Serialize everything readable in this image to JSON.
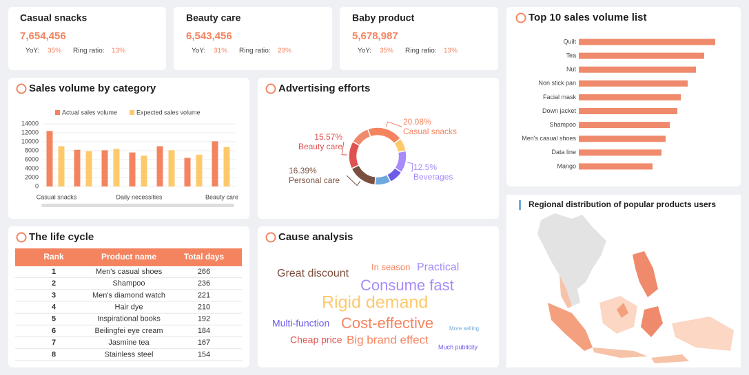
{
  "cards": [
    {
      "name": "Casual snacks",
      "value": "7,654,456",
      "yoy_label": "YoY:",
      "yoy": "35%",
      "ring_label": "Ring ratio:",
      "ring": "13%"
    },
    {
      "name": "Beauty care",
      "value": "6,543,456",
      "yoy_label": "YoY:",
      "yoy": "31%",
      "ring_label": "Ring ratio:",
      "ring": "23%"
    },
    {
      "name": "Baby product",
      "value": "5,678,987",
      "yoy_label": "YoY:",
      "yoy": "35%",
      "ring_label": "Ring ratio:",
      "ring": "13%"
    }
  ],
  "chart_data": [
    {
      "type": "bar",
      "title": "Sales volume by category",
      "categories": [
        "Casual snacks",
        null,
        null,
        "Daily necessities",
        null,
        null,
        "Beauty care"
      ],
      "series": [
        {
          "name": "Actual sales volume",
          "color": "#f4845f",
          "values": [
            12400,
            8200,
            8100,
            7600,
            9000,
            6400,
            10100
          ]
        },
        {
          "name": "Expected sales volume",
          "color": "#fdc96b",
          "values": [
            9000,
            7900,
            8400,
            6900,
            8100,
            7100,
            8800
          ]
        }
      ],
      "ylim": [
        0,
        14000
      ],
      "yticks": [
        0,
        2000,
        4000,
        6000,
        8000,
        10000,
        12000,
        14000
      ],
      "grid": true,
      "legend": "top"
    },
    {
      "type": "pie",
      "title": "Advertising efforts",
      "categories": [
        "Casual snacks",
        null,
        "Beverages",
        null,
        null,
        "Personal care",
        "Beauty care",
        null
      ],
      "values": [
        20.08,
        7.5,
        12.5,
        8,
        9,
        16.39,
        15.57,
        10.96
      ],
      "value_labels": [
        "20.08%",
        null,
        "12.5%",
        null,
        null,
        "16.39%",
        "15.57%",
        null
      ],
      "colors": [
        "#f4845f",
        "#fdc96b",
        "#a78bfa",
        "#6c5ce7",
        "#6fa8dc",
        "#7b4f3f",
        "#e05252",
        "#f08a6c"
      ],
      "donut": true
    },
    {
      "type": "hbar",
      "title": "Top 10 sales volume list",
      "categories": [
        "Quilt",
        "Tea",
        "Nut",
        "Non stick pan",
        "Facial mask",
        "Down jacket",
        "Shampoo",
        "Men's casual shoes",
        "Data line",
        "Mango"
      ],
      "values": [
        198,
        182,
        170,
        158,
        148,
        143,
        132,
        126,
        120,
        107
      ],
      "xlim": [
        0,
        200
      ],
      "color": "#f08a6c"
    }
  ],
  "table": {
    "title": "The life cycle",
    "header": [
      "Rank",
      "Product name",
      "Total days"
    ],
    "rows": [
      [
        1,
        "Men's casual shoes",
        266
      ],
      [
        2,
        "Shampoo",
        236
      ],
      [
        3,
        "Men's diamond watch",
        221
      ],
      [
        4,
        "Hair dye",
        210
      ],
      [
        5,
        "Inspirational books",
        192
      ],
      [
        6,
        "Beilingfei eye cream",
        184
      ],
      [
        7,
        "Jasmine tea",
        167
      ],
      [
        8,
        "Stainless steel",
        154
      ]
    ]
  },
  "cause": {
    "title": "Cause analysis",
    "words": [
      "Great discount",
      "In season",
      "Practical",
      "Consume fast",
      "Rigid demand",
      "Multi-function",
      "Cost-effective",
      "More selling",
      "Cheap price",
      "Big brand effect",
      "Much publicity"
    ]
  },
  "map": {
    "title": "Regional distribution of popular products users"
  }
}
